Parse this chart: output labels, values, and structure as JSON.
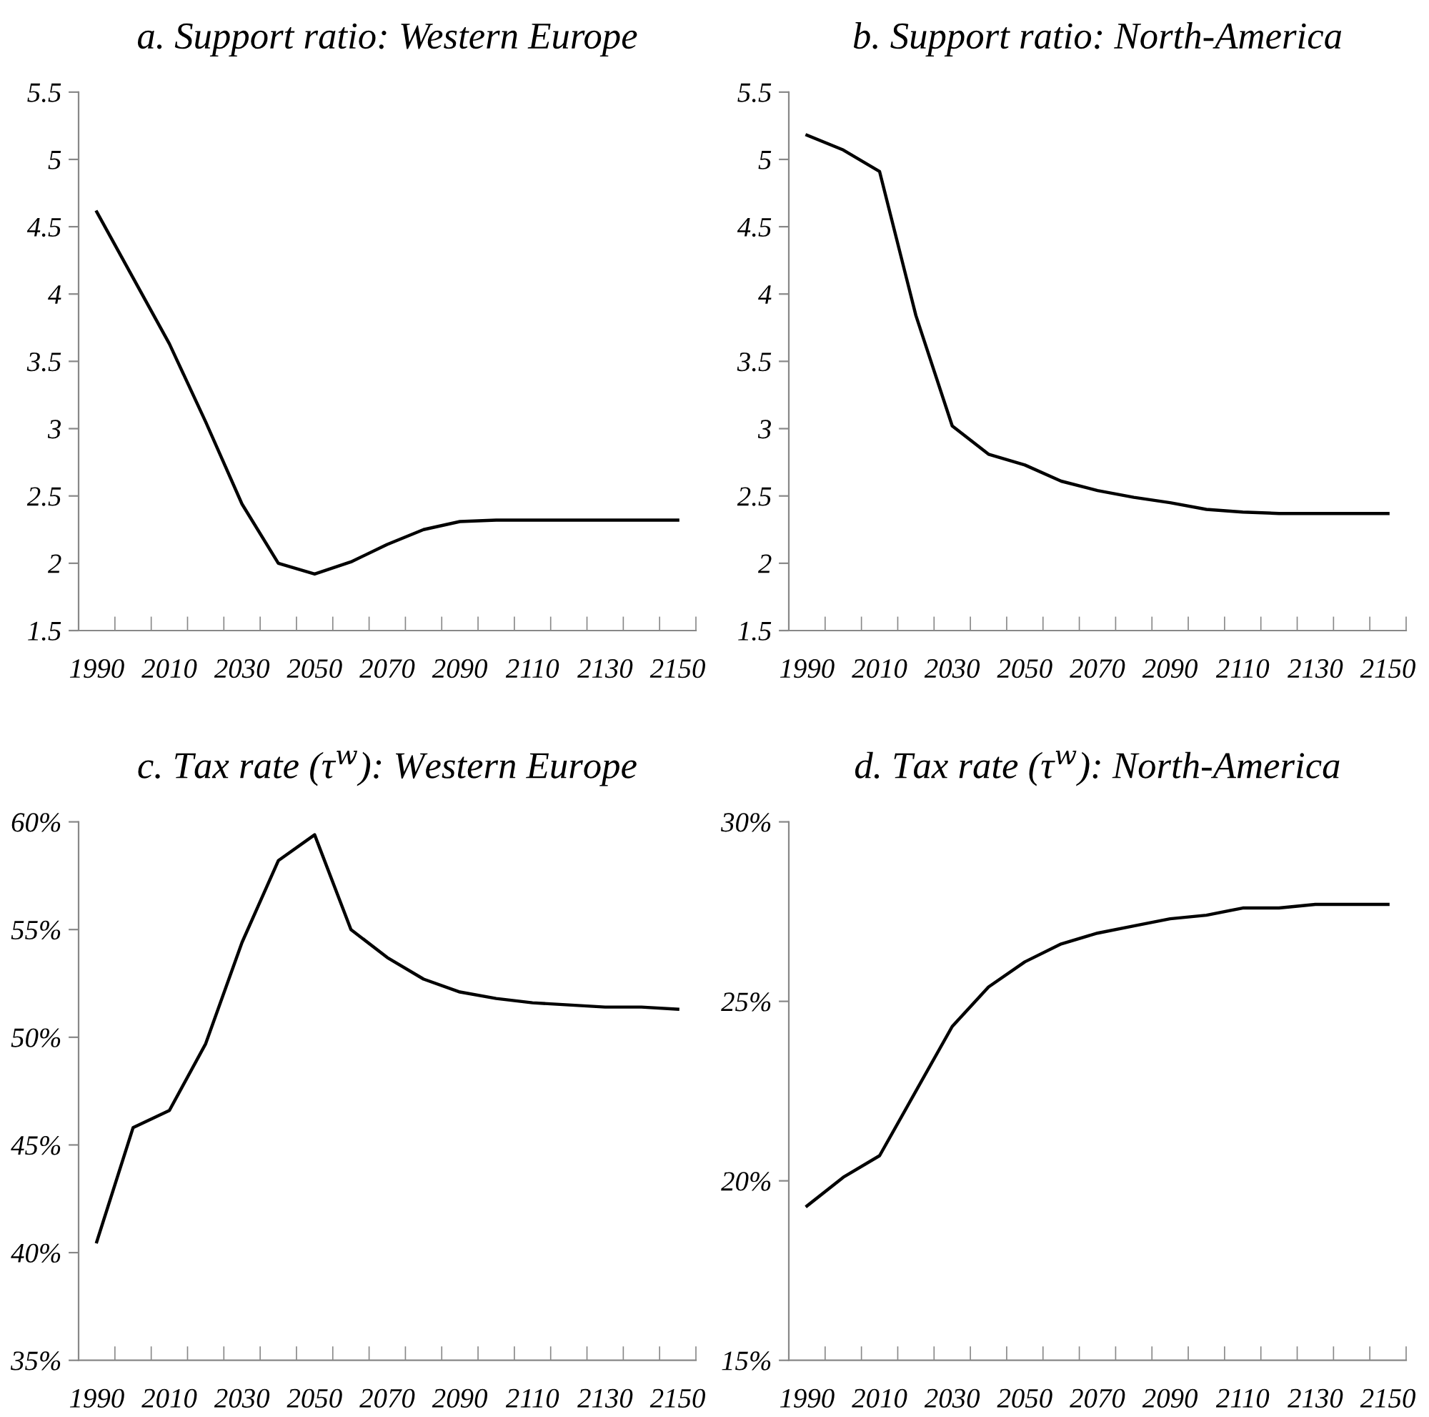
{
  "chart_data": [
    {
      "type": "line",
      "title": "a. Support ratio: Western Europe",
      "categories": [
        "1990",
        null,
        "2010",
        null,
        "2030",
        null,
        "2050",
        null,
        "2070",
        null,
        "2090",
        null,
        "2110",
        null,
        "2130",
        null,
        "2150"
      ],
      "series": [
        {
          "color": "#000000",
          "values": [
            4.61,
            4.12,
            3.63,
            3.05,
            2.44,
            2.0,
            1.92,
            2.01,
            2.14,
            2.25,
            2.31,
            2.32,
            2.32,
            2.32,
            2.32,
            2.32,
            2.32
          ]
        }
      ],
      "ylim": [
        1.5,
        5.5
      ],
      "yticks": [
        1.5,
        2,
        2.5,
        3,
        3.5,
        4,
        4.5,
        5,
        5.5
      ],
      "grid": false
    },
    {
      "type": "line",
      "title": "b. Support ratio: North-America",
      "categories": [
        "1990",
        null,
        "2010",
        null,
        "2030",
        null,
        "2050",
        null,
        "2070",
        null,
        "2090",
        null,
        "2110",
        null,
        "2130",
        null,
        "2150"
      ],
      "series": [
        {
          "color": "#000000",
          "values": [
            5.18,
            5.07,
            4.91,
            3.84,
            3.02,
            2.81,
            2.73,
            2.61,
            2.54,
            2.49,
            2.45,
            2.4,
            2.38,
            2.37,
            2.37,
            2.37,
            2.37
          ]
        }
      ],
      "ylim": [
        1.5,
        5.5
      ],
      "yticks": [
        1.5,
        2,
        2.5,
        3,
        3.5,
        4,
        4.5,
        5,
        5.5
      ],
      "grid": false
    },
    {
      "type": "line",
      "title": "c. Tax rate (τ$^{w}$): Western Europe",
      "categories": [
        "1990",
        null,
        "2010",
        null,
        "2030",
        null,
        "2050",
        null,
        "2070",
        null,
        "2090",
        null,
        "2110",
        null,
        "2130",
        null,
        "2150"
      ],
      "series": [
        {
          "color": "#000000",
          "values": [
            40.5,
            45.8,
            46.6,
            49.7,
            54.4,
            58.2,
            59.4,
            55.0,
            53.7,
            52.7,
            52.1,
            51.8,
            51.6,
            51.5,
            51.4,
            51.4,
            51.3
          ]
        }
      ],
      "ylim": [
        35,
        60
      ],
      "yticks": [
        {
          "value": 35,
          "label": "35%"
        },
        {
          "value": 40,
          "label": "40%"
        },
        {
          "value": 45,
          "label": "45%"
        },
        {
          "value": 50,
          "label": "50%"
        },
        {
          "value": 55,
          "label": "55%"
        },
        {
          "value": 60,
          "label": "60%"
        }
      ],
      "grid": false
    },
    {
      "type": "line",
      "title": "d. Tax rate (τ$^{w}$): North-America",
      "categories": [
        "1990",
        null,
        "2010",
        null,
        "2030",
        null,
        "2050",
        null,
        "2070",
        null,
        "2090",
        null,
        "2110",
        null,
        "2130",
        null,
        "2150"
      ],
      "series": [
        {
          "color": "#000000",
          "values": [
            19.3,
            20.1,
            20.7,
            22.5,
            24.3,
            25.4,
            26.1,
            26.6,
            26.9,
            27.1,
            27.3,
            27.4,
            27.6,
            27.6,
            27.7,
            27.7,
            27.7
          ]
        }
      ],
      "ylim": [
        15,
        30
      ],
      "yticks": [
        {
          "value": 15,
          "label": "15%"
        },
        {
          "value": 20,
          "label": "20%"
        },
        {
          "value": 25,
          "label": "25%"
        },
        {
          "value": 30,
          "label": "30%"
        }
      ],
      "grid": false
    }
  ]
}
